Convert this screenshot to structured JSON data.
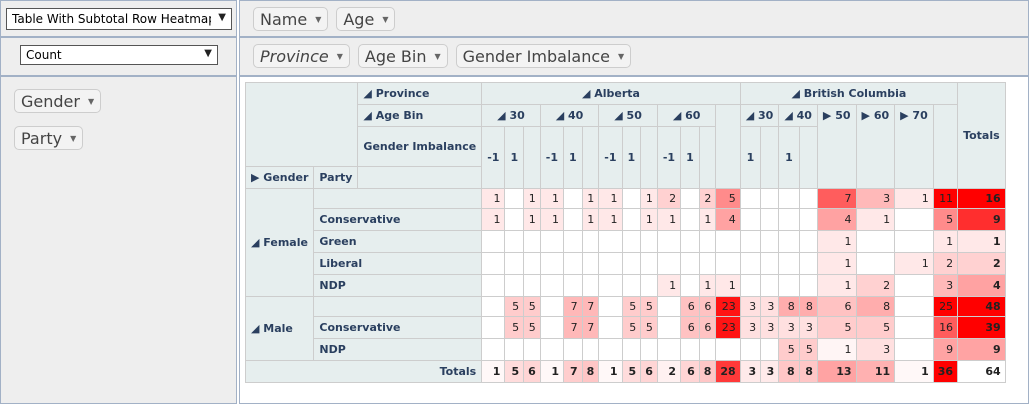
{
  "renderer": {
    "selected": "Table With Subtotal Row Heatmap"
  },
  "aggregator": {
    "selected": "Count"
  },
  "unused_fields": [
    "Name",
    "Age"
  ],
  "col_fields": [
    "Province",
    "Age Bin",
    "Gender Imbalance"
  ],
  "row_fields": [
    "Gender",
    "Party"
  ],
  "headers": {
    "province": "Province",
    "age_bin": "Age Bin",
    "gender_imbalance": "Gender Imbalance",
    "gender": "Gender",
    "party": "Party",
    "totals": "Totals",
    "alberta": "Alberta",
    "british_columbia": "British Columbia",
    "toggle_open": "◢",
    "toggle_closed": "▶"
  },
  "age_bins_alberta": [
    "30",
    "40",
    "50",
    "60"
  ],
  "age_bins_bc": [
    "30",
    "40",
    "50",
    "60",
    "70"
  ],
  "gi_alberta": [
    "-1",
    "1",
    "",
    "-1",
    "1",
    "",
    "-1",
    "1",
    "",
    "-1",
    "1",
    ""
  ],
  "gi_bc": [
    "1",
    "",
    "1",
    "",
    "",
    "",
    ""
  ],
  "rows": [
    {
      "gender": "Female",
      "party": "",
      "values": [
        "1",
        "",
        "1",
        "1",
        "",
        "1",
        "1",
        "",
        "1",
        "2",
        "",
        "2",
        "5",
        "",
        "",
        "",
        "",
        "7",
        "3",
        "1",
        "11",
        "16"
      ]
    },
    {
      "gender": "",
      "party": "Conservative",
      "values": [
        "1",
        "",
        "1",
        "1",
        "",
        "1",
        "1",
        "",
        "1",
        "1",
        "",
        "1",
        "4",
        "",
        "",
        "",
        "",
        "4",
        "1",
        "",
        "5",
        "9"
      ]
    },
    {
      "gender": "",
      "party": "Green",
      "values": [
        "",
        "",
        "",
        "",
        "",
        "",
        "",
        "",
        "",
        "",
        "",
        "",
        "",
        "",
        "",
        "",
        "",
        "1",
        "",
        "",
        "1",
        "1"
      ]
    },
    {
      "gender": "",
      "party": "Liberal",
      "values": [
        "",
        "",
        "",
        "",
        "",
        "",
        "",
        "",
        "",
        "",
        "",
        "",
        "",
        "",
        "",
        "",
        "",
        "1",
        "",
        "1",
        "2",
        "2"
      ]
    },
    {
      "gender": "",
      "party": "NDP",
      "values": [
        "",
        "",
        "",
        "",
        "",
        "",
        "",
        "",
        "",
        "1",
        "",
        "1",
        "1",
        "",
        "",
        "",
        "",
        "1",
        "2",
        "",
        "3",
        "4"
      ]
    },
    {
      "gender": "Male",
      "party": "",
      "values": [
        "",
        "5",
        "5",
        "",
        "7",
        "7",
        "",
        "5",
        "5",
        "",
        "6",
        "6",
        "23",
        "3",
        "3",
        "8",
        "8",
        "6",
        "8",
        "",
        "25",
        "48"
      ]
    },
    {
      "gender": "",
      "party": "Conservative",
      "values": [
        "",
        "5",
        "5",
        "",
        "7",
        "7",
        "",
        "5",
        "5",
        "",
        "6",
        "6",
        "23",
        "3",
        "3",
        "3",
        "3",
        "5",
        "5",
        "",
        "16",
        "39"
      ]
    },
    {
      "gender": "",
      "party": "NDP",
      "values": [
        "",
        "",
        "",
        "",
        "",
        "",
        "",
        "",
        "",
        "",
        "",
        "",
        "",
        "",
        "",
        "5",
        "5",
        "1",
        "3",
        "",
        "9",
        "9"
      ]
    }
  ],
  "totals_row": {
    "label": "Totals",
    "values": [
      "1",
      "5",
      "6",
      "1",
      "7",
      "8",
      "1",
      "5",
      "6",
      "2",
      "6",
      "8",
      "28",
      "3",
      "3",
      "8",
      "8",
      "13",
      "11",
      "1",
      "36",
      "64"
    ]
  },
  "colors": {
    "heat_max": "#ff0000",
    "header_bg": "#e6eeee",
    "panel_bg": "#eeeeee"
  }
}
